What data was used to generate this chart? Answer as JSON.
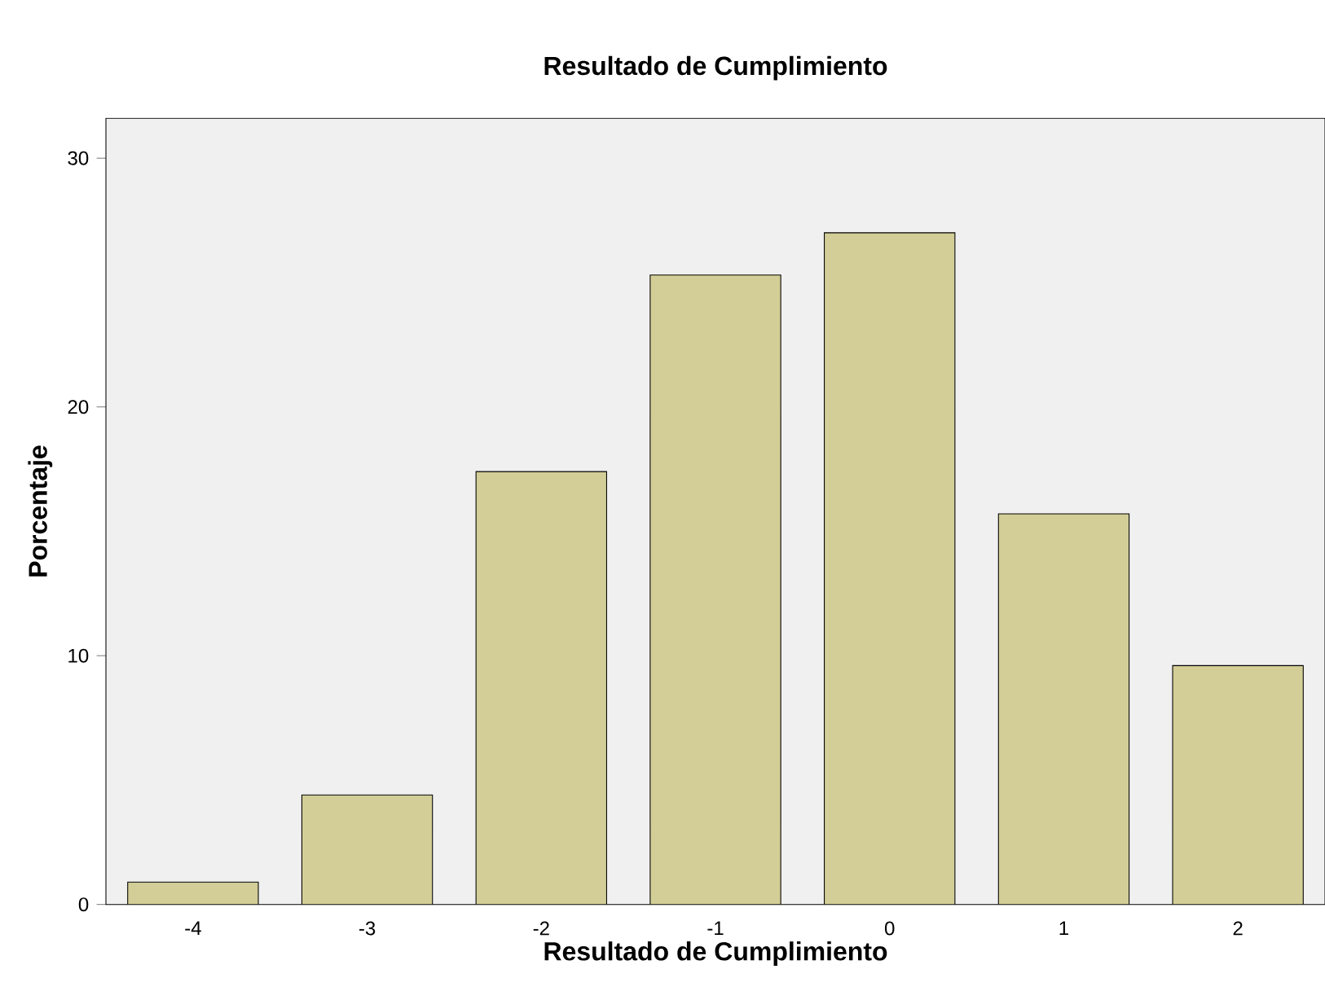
{
  "chart_data": {
    "type": "bar",
    "title": "Resultado de Cumplimiento",
    "xlabel": "Resultado de Cumplimiento",
    "ylabel": "Porcentaje",
    "categories": [
      "-4",
      "-3",
      "-2",
      "-1",
      "0",
      "1",
      "2"
    ],
    "values": [
      0.9,
      4.4,
      17.4,
      25.3,
      27.0,
      15.7,
      9.6
    ],
    "color": "#d3ce97",
    "ylim": [
      0,
      31.6
    ],
    "yticks": [
      0,
      10,
      20,
      30
    ],
    "grid": false
  }
}
